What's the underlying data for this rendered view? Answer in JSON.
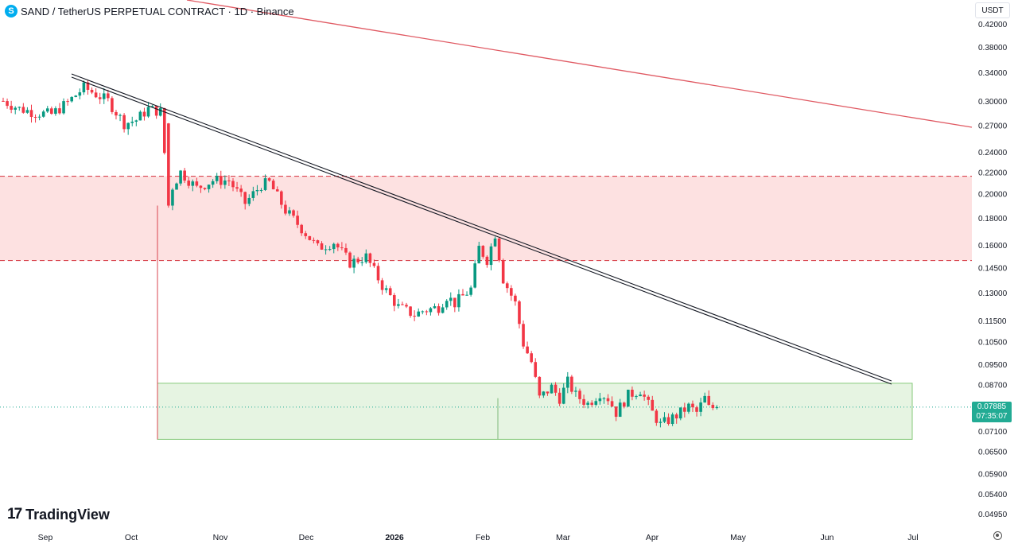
{
  "header": {
    "symbol_icon": "S",
    "title": "SAND / TetherUS PERPETUAL CONTRACT · 1D · Binance"
  },
  "currency_button": "USDT",
  "logo": {
    "mark": "17",
    "text": "TradingView"
  },
  "last_price": {
    "value": "0.07885",
    "countdown": "07:35:07",
    "color": "#22ab94"
  },
  "settings_icon": "gear-icon",
  "chart_data": {
    "type": "candlestick",
    "title": "SAND / TetherUS PERPETUAL CONTRACT · 1D · Binance",
    "y_scale": "log",
    "ylim": [
      0.0475,
      0.44
    ],
    "y_ticks": [
      "0.42000",
      "0.38000",
      "0.34000",
      "0.30000",
      "0.27000",
      "0.24000",
      "0.22000",
      "0.20000",
      "0.18000",
      "0.16000",
      "0.14500",
      "0.13000",
      "0.11500",
      "0.10500",
      "0.09500",
      "0.08700",
      "0.07100",
      "0.06500",
      "0.05900",
      "0.05400",
      "0.04950"
    ],
    "x_ticks": [
      "Sep",
      "Oct",
      "Nov",
      "Dec",
      "2026",
      "Feb",
      "Mar",
      "Apr",
      "May",
      "Jun",
      "Jul"
    ],
    "colors": {
      "up": "#089981",
      "down": "#f23645",
      "resistance_fill": "#fde1e1",
      "support_fill": "#e6f4e2"
    },
    "candles_anchor": [
      [
        0,
        0.3
      ],
      [
        4,
        0.29
      ],
      [
        8,
        0.285
      ],
      [
        12,
        0.283
      ],
      [
        16,
        0.298
      ],
      [
        20,
        0.318
      ],
      [
        22,
        0.312
      ],
      [
        26,
        0.3
      ],
      [
        30,
        0.272
      ],
      [
        33,
        0.276
      ],
      [
        36,
        0.29
      ],
      [
        39,
        0.286
      ],
      [
        41,
        0.2
      ],
      [
        44,
        0.22
      ],
      [
        48,
        0.205
      ],
      [
        52,
        0.212
      ],
      [
        56,
        0.212
      ],
      [
        60,
        0.192
      ],
      [
        64,
        0.208
      ],
      [
        66,
        0.21
      ],
      [
        70,
        0.186
      ],
      [
        74,
        0.172
      ],
      [
        78,
        0.158
      ],
      [
        82,
        0.162
      ],
      [
        86,
        0.148
      ],
      [
        90,
        0.152
      ],
      [
        94,
        0.134
      ],
      [
        98,
        0.122
      ],
      [
        102,
        0.118
      ],
      [
        104,
        0.12
      ],
      [
        108,
        0.122
      ],
      [
        110,
        0.128
      ],
      [
        112,
        0.124
      ],
      [
        116,
        0.132
      ],
      [
        118,
        0.158
      ],
      [
        120,
        0.15
      ],
      [
        122,
        0.168
      ],
      [
        124,
        0.138
      ],
      [
        127,
        0.124
      ],
      [
        129,
        0.104
      ],
      [
        131,
        0.096
      ],
      [
        133,
        0.082
      ],
      [
        136,
        0.086
      ],
      [
        138,
        0.082
      ],
      [
        140,
        0.088
      ],
      [
        142,
        0.083
      ],
      [
        145,
        0.08
      ],
      [
        148,
        0.084
      ],
      [
        150,
        0.082
      ],
      [
        152,
        0.077
      ],
      [
        155,
        0.083
      ],
      [
        158,
        0.085
      ],
      [
        161,
        0.077
      ],
      [
        163,
        0.073
      ],
      [
        167,
        0.076
      ],
      [
        170,
        0.079
      ],
      [
        172,
        0.077
      ],
      [
        174,
        0.082
      ],
      [
        175,
        0.0785
      ],
      [
        177,
        0.0788
      ]
    ],
    "resistance_zone": {
      "from": 0.1495,
      "to": 0.216,
      "style": "dashed-border"
    },
    "support_zone": {
      "from": 0.0685,
      "to": 0.0875,
      "start_date": "Oct",
      "end_date": "Jun"
    },
    "trendlines": [
      {
        "name": "black double line",
        "color": "#131722",
        "from": [
          "Sep",
          0.33
        ],
        "to": [
          "Jun",
          0.0875
        ]
      },
      {
        "name": "red line",
        "color": "#e05a63",
        "from": [
          "Aug",
          0.46
        ],
        "to": [
          "Jul",
          0.267
        ]
      }
    ],
    "last_price_line": 0.07885
  }
}
